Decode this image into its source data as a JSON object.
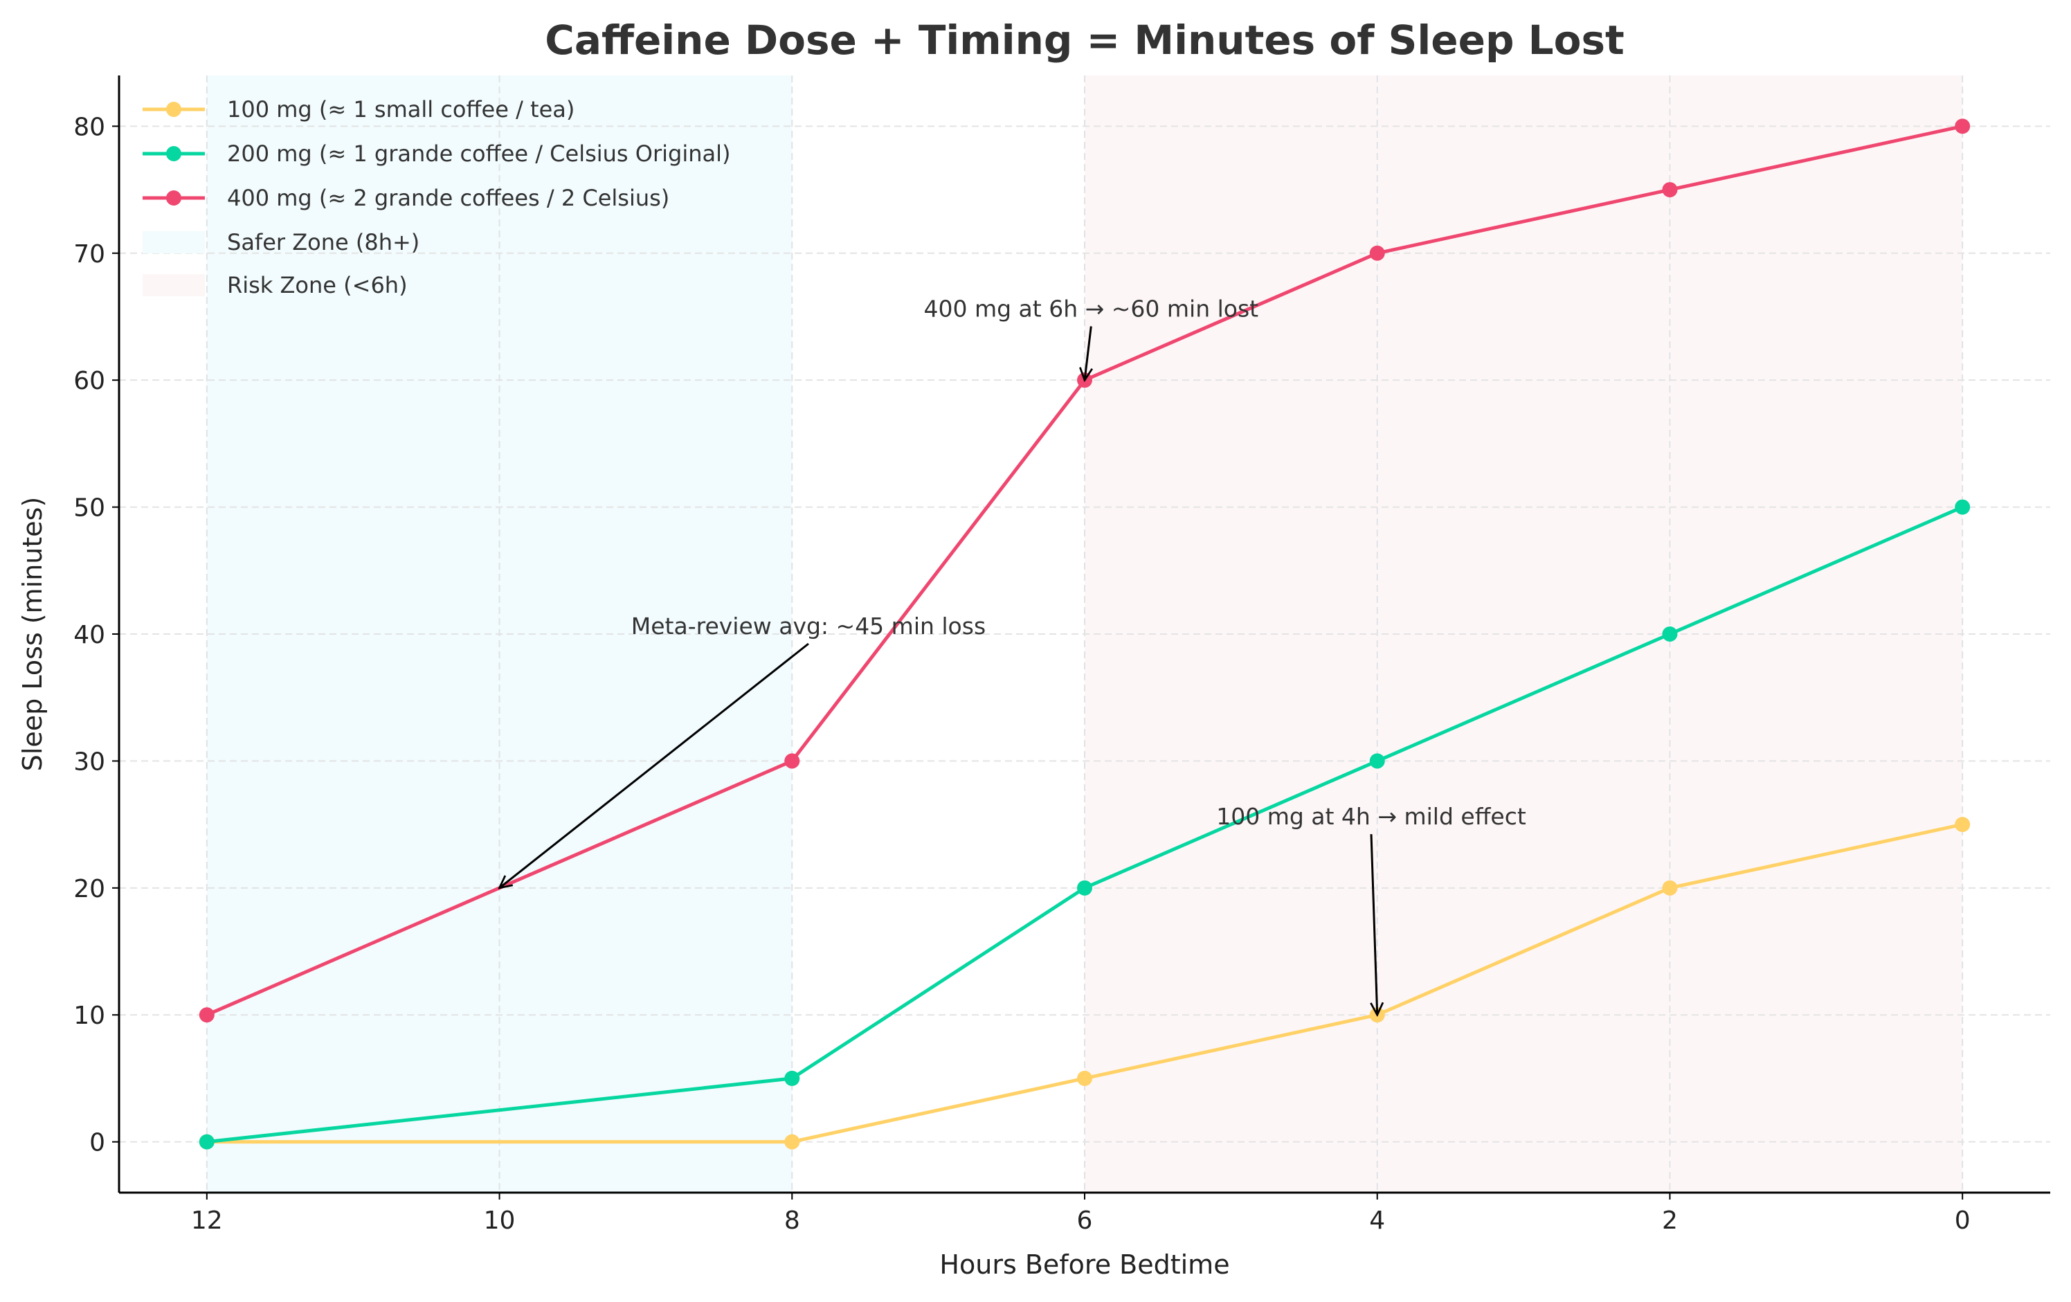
{
  "chart_data": {
    "type": "line",
    "title": "Caffeine Dose + Timing = Minutes of Sleep Lost",
    "xlabel": "Hours Before Bedtime",
    "ylabel": "Sleep Loss (minutes)",
    "x": [
      12,
      8,
      6,
      4,
      2,
      0
    ],
    "xlim": [
      12.6,
      -0.6
    ],
    "ylim": [
      -4,
      84
    ],
    "x_inverted": true,
    "xticks": [
      12,
      10,
      8,
      6,
      4,
      2,
      0
    ],
    "yticks": [
      0,
      10,
      20,
      30,
      40,
      50,
      60,
      70,
      80
    ],
    "grid": true,
    "legend_placement": "top-left",
    "series": [
      {
        "name": "100 mg (≈ 1 small coffee / tea)",
        "color": "#FFD166",
        "values": [
          0,
          0,
          5,
          10,
          20,
          25
        ]
      },
      {
        "name": "200 mg (≈ 1 grande coffee / Celsius Original)",
        "color": "#06D6A0",
        "values": [
          0,
          5,
          20,
          30,
          40,
          50
        ]
      },
      {
        "name": "400 mg (≈ 2 grande coffees / 2 Celsius)",
        "color": "#EF476F",
        "values": [
          10,
          30,
          60,
          70,
          75,
          80
        ]
      }
    ],
    "zones": [
      {
        "name": "Safer Zone (8h+)",
        "from": 12,
        "to": 8,
        "color": "#F2FBFD"
      },
      {
        "name": "Risk Zone (<6h)",
        "from": 6,
        "to": 0,
        "color": "#FDF6F7"
      }
    ],
    "annotations": [
      {
        "text": "400 mg at 6h → ~60 min lost",
        "xy": [
          6,
          60
        ],
        "xytext": [
          7.1,
          65
        ]
      },
      {
        "text": "Meta-review avg: ~45 min loss",
        "xy": [
          10,
          20
        ],
        "xytext": [
          9.1,
          40
        ]
      },
      {
        "text": "100 mg at 4h → mild effect",
        "xy": [
          4,
          10
        ],
        "xytext": [
          5.1,
          25
        ]
      }
    ]
  }
}
